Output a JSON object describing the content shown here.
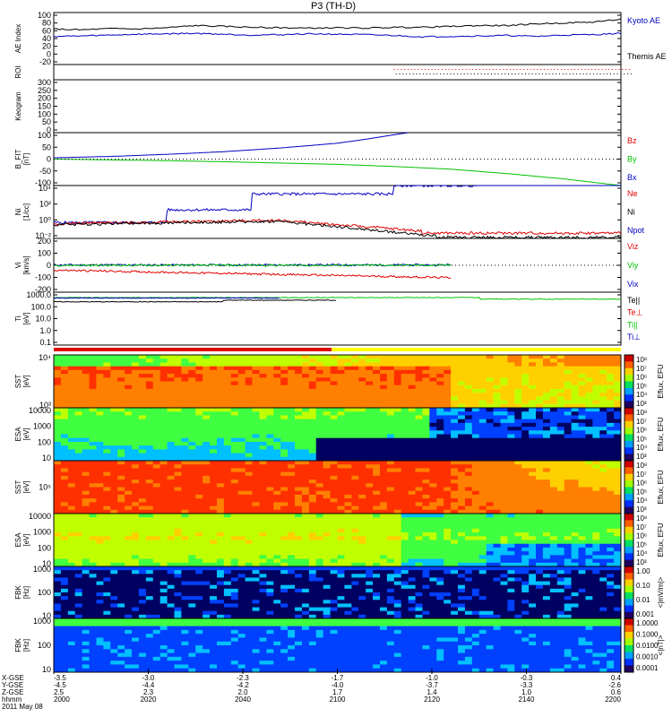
{
  "title": "P3 (TH-D)",
  "colors": {
    "red": "#e00000",
    "green": "#00c000",
    "blue": "#0000c0",
    "black": "#000000"
  },
  "chart_data": [
    {
      "type": "line",
      "id": "ae",
      "ylabel": "AE Index",
      "yticks": [
        "100",
        "80",
        "60",
        "40",
        "20",
        "0",
        "-20"
      ],
      "ylim": [
        -20,
        100
      ],
      "series": [
        {
          "name": "Kyoto AE",
          "color": "#0000c0",
          "x": [
            2000,
            2010,
            2020,
            2030,
            2040,
            2050,
            2060,
            2070,
            2080,
            2090,
            2100,
            2110,
            2120,
            2130,
            2140,
            2150,
            2160,
            2170,
            2180,
            2190,
            2200
          ],
          "values": [
            45,
            46,
            48,
            50,
            51,
            52,
            50,
            48,
            49,
            51,
            50,
            49,
            47,
            44,
            45,
            46,
            47,
            45,
            48,
            49,
            52
          ]
        },
        {
          "name": "Themis AE",
          "color": "#000000",
          "x": [
            2000,
            2010,
            2020,
            2030,
            2040,
            2050,
            2060,
            2070,
            2080,
            2090,
            2100,
            2110,
            2120,
            2130,
            2140,
            2150,
            2160,
            2170,
            2180,
            2190,
            2200
          ],
          "values": [
            62,
            60,
            63,
            62,
            65,
            70,
            68,
            66,
            65,
            64,
            65,
            64,
            66,
            66,
            68,
            70,
            70,
            74,
            76,
            78,
            85
          ]
        }
      ],
      "legend": [
        "Kyoto AE",
        "Themis AE"
      ]
    },
    {
      "type": "scatter",
      "id": "roi",
      "ylabel": "ROI"
    },
    {
      "type": "bar",
      "id": "keogram",
      "ylabel": "Keogram",
      "yticks": [
        "300",
        "250",
        "200",
        "150",
        "100",
        "50",
        "0"
      ],
      "ylim": [
        0,
        300
      ]
    },
    {
      "type": "line",
      "id": "bfit",
      "ylabel": "B_FIT\n[nT]",
      "yticks": [
        "100",
        "50",
        "0",
        "-50",
        "-100"
      ],
      "ylim": [
        -100,
        100
      ],
      "series": [
        {
          "name": "Bz",
          "color": "#e00000",
          "x": [],
          "values": []
        },
        {
          "name": "By",
          "color": "#00c000",
          "x": [
            2000,
            2020,
            2040,
            2060,
            2080,
            2100,
            2120,
            2140,
            2160,
            2180,
            2200
          ],
          "values": [
            0,
            -3,
            -6,
            -10,
            -15,
            -20,
            -28,
            -38,
            -55,
            -75,
            -100
          ]
        },
        {
          "name": "Bx",
          "color": "#0000c0",
          "x": [
            2000,
            2020,
            2040,
            2060,
            2080,
            2100,
            2110,
            2120,
            2125
          ],
          "values": [
            5,
            10,
            18,
            28,
            42,
            60,
            75,
            92,
            100
          ]
        }
      ],
      "legend": [
        "Bz",
        "By",
        "Bx"
      ]
    },
    {
      "type": "line",
      "id": "ni",
      "ylabel": "Ni\n[1/cc]",
      "yticks": [
        "10⁴",
        "10²",
        "10⁰",
        "10⁻²"
      ],
      "log": true,
      "series": [
        {
          "name": "Ne",
          "color": "#e00000"
        },
        {
          "name": "Ni",
          "color": "#000000"
        },
        {
          "name": "Npot",
          "color": "#0000c0"
        }
      ],
      "legend": [
        "Ne",
        "Ni",
        "Npot"
      ]
    },
    {
      "type": "line",
      "id": "vi",
      "ylabel": "Vi\n[km/s]",
      "yticks": [
        "200",
        "100",
        "0",
        "-100",
        "-200"
      ],
      "ylim": [
        -250,
        250
      ],
      "series": [
        {
          "name": "Viz",
          "color": "#e00000"
        },
        {
          "name": "Viy",
          "color": "#00c000"
        },
        {
          "name": "Vix",
          "color": "#0000c0"
        }
      ],
      "legend": [
        "Viz",
        "Viy",
        "Vix"
      ]
    },
    {
      "type": "line",
      "id": "ti",
      "ylabel": "Ti\n[eV]",
      "yticks": [
        "1000.0",
        "100.0",
        "10.0",
        "1.0",
        "0.1"
      ],
      "log": true,
      "series": [
        {
          "name": "Te||",
          "color": "#000000"
        },
        {
          "name": "Te⊥",
          "color": "#e00000"
        },
        {
          "name": "Ti||",
          "color": "#00c000"
        },
        {
          "name": "Ti⊥",
          "color": "#0000c0"
        }
      ],
      "legend": [
        "Te||",
        "Te⊥",
        "Ti||",
        "Ti⊥"
      ]
    },
    {
      "type": "heatmap",
      "id": "sst_e",
      "ylabel": "SST\n[eV]",
      "yticks": [
        "10⁴",
        "10³"
      ],
      "cbar_ticks": [
        "10⁸",
        "10⁷",
        "10⁶",
        "10⁵",
        "10⁴",
        "10³"
      ],
      "cbar_label": "Eflux, EFU"
    },
    {
      "type": "heatmap",
      "id": "esa_e",
      "ylabel": "ESA\n[eV]",
      "yticks": [
        "10000",
        "1000",
        "100",
        "10"
      ],
      "cbar_ticks": [
        "10⁸",
        "10⁷",
        "10⁶",
        "10⁵",
        "10⁴",
        "10³"
      ],
      "cbar_label": "Eflux, EFU"
    },
    {
      "type": "heatmap",
      "id": "sst_i",
      "ylabel": "SST\n[eV]",
      "yticks": [
        "10⁵"
      ],
      "cbar_ticks": [
        "10⁸",
        "10⁷",
        "10⁶",
        "10⁵",
        "10⁴",
        "10³"
      ],
      "cbar_label": "Eflux, EFU"
    },
    {
      "type": "heatmap",
      "id": "esa_i",
      "ylabel": "ESA\n[eV]",
      "yticks": [
        "10000",
        "1000",
        "100",
        "10"
      ],
      "cbar_ticks": [
        "10⁸",
        "10⁷",
        "10⁶",
        "10⁵",
        "10⁴",
        "10³"
      ],
      "cbar_label": "Eflux, EFU"
    },
    {
      "type": "heatmap",
      "id": "fbk_e",
      "ylabel": "FBK\n[Hz]",
      "yticks": [
        "1000",
        "100",
        "10"
      ],
      "cbar_ticks": [
        "1.00",
        "0.10",
        "0.01",
        "0.001"
      ],
      "cbar_label": "<|mV/m|>"
    },
    {
      "type": "heatmap",
      "id": "fbk_b",
      "ylabel": "FBK\n[Hz]",
      "yticks": [
        "1000",
        "100",
        "10"
      ],
      "cbar_ticks": [
        "1.0000",
        "0.1000",
        "0.0100",
        "0.0010",
        "0.0001"
      ],
      "cbar_label": "<|nT|>"
    }
  ],
  "xaxis": {
    "row_labels": [
      "X-GSE",
      "Y-GSE",
      "Z-GSE",
      "hhmm",
      "2011 May 08"
    ],
    "columns": [
      {
        "x": "-3.5",
        "y": "-4.5",
        "z": "2.5",
        "t": "2000"
      },
      {
        "x": "-3.0",
        "y": "-4.4",
        "z": "2.3",
        "t": "2020"
      },
      {
        "x": "-2.3",
        "y": "-4.2",
        "z": "2.0",
        "t": "2040"
      },
      {
        "x": "-1.7",
        "y": "-4.0",
        "z": "1.7",
        "t": "2100"
      },
      {
        "x": "-1.0",
        "y": "-3.7",
        "z": "1.4",
        "t": "2120"
      },
      {
        "x": "-0.3",
        "y": "-3.3",
        "z": "1.0",
        "t": "2140"
      },
      {
        "x": "0.4",
        "y": "-2.6",
        "z": "0.6",
        "t": "2200"
      }
    ]
  }
}
